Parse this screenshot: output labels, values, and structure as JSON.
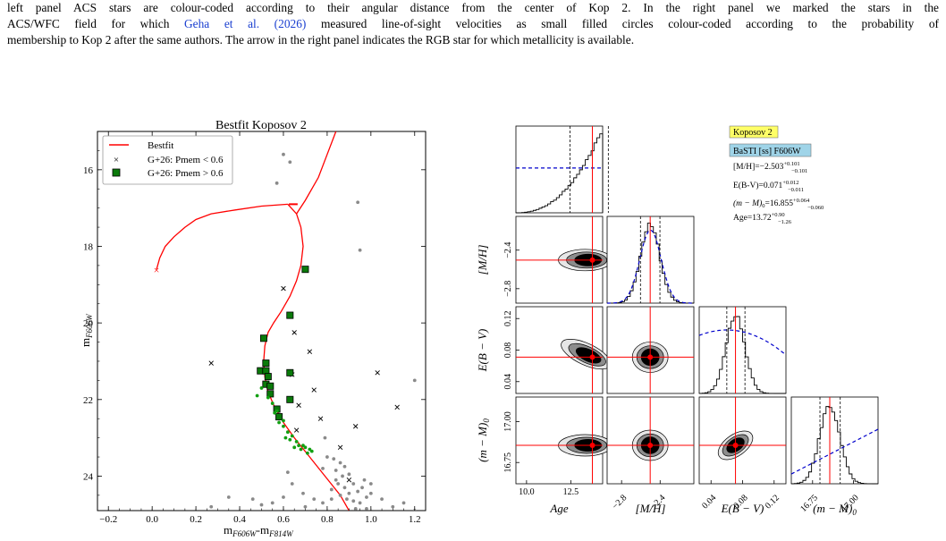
{
  "caption": {
    "line1": "left panel ACS stars are colour-coded according to their angular distance from the center of Kop 2. In the right panel we marked the stars in the",
    "line2_pre": "ACS/WFC field for which ",
    "line2_link_author": "Geha et al.",
    "line2_link_year": "2026",
    "line2_post": " measured line-of-sight velocities as small filled circles colour-coded according to the probability of",
    "line3": "membership to Kop 2 after the same authors. The arrow in the right panel indicates the RGB star for which metallicity is available."
  },
  "cmd_panel": {
    "title": "Bestfit Koposov 2",
    "xlabel_main": "m",
    "xlabel_sub1": "F606W",
    "xlabel_dash": "-m",
    "xlabel_sub2": "F814W",
    "ylabel_main": "m",
    "ylabel_sub": "F606W",
    "legend": [
      "Bestfit",
      "G+26: Pmem < 0.6",
      "G+26: Pmem > 0.6"
    ]
  },
  "corner_panel": {
    "legend_boxes": [
      "Koposov 2",
      "BaSTI [ss] F606W"
    ],
    "results": {
      "mh": {
        "label": "[M/H]=",
        "value": "−2.503",
        "sup": "+0.101",
        "sub": "−0.101"
      },
      "ebv": {
        "label": "E(B-V)=",
        "value": "0.071",
        "sup": "+0.012",
        "sub": "−0.011"
      },
      "dm": {
        "label": "(m − M)",
        "label_sub": "0",
        "eq": "=",
        "value": "16.855",
        "sup": "+0.064",
        "sub": "−0.060"
      },
      "age": {
        "label": "Age=",
        "value": "13.72",
        "sup": "+0.90",
        "sub": "−1.26"
      }
    },
    "param_labels": {
      "age": "Age",
      "mh": "[M/H]",
      "ebv": "E(B − V)",
      "dm": "(m − M)",
      "dm_sub": "0"
    },
    "colors": {
      "fit_line": "#ff0000",
      "hist": "#000000",
      "prior": "#0000cc",
      "legend_yellow": "#ffff66",
      "legend_blue": "#9fd4e8"
    }
  },
  "chart_data": [
    {
      "type": "scatter",
      "title": "Bestfit Koposov 2",
      "xlabel": "mF606W-mF814W",
      "ylabel": "mF606W",
      "xlim": [
        -0.25,
        1.25
      ],
      "ylim": [
        24.9,
        15.0
      ],
      "y_inverted": true,
      "x_ticks": [
        "−0.2",
        "0.0",
        "0.2",
        "0.4",
        "0.6",
        "0.8",
        "1.0",
        "1.2"
      ],
      "x_tick_values": [
        -0.2,
        0.0,
        0.2,
        0.4,
        0.6,
        0.8,
        1.0,
        1.2
      ],
      "y_ticks": [
        "16",
        "18",
        "20",
        "22",
        "24"
      ],
      "y_tick_values": [
        16,
        18,
        20,
        22,
        24
      ],
      "legend_placement": "top-left",
      "series": [
        {
          "name": "Bestfit",
          "kind": "line",
          "color": "#ff0000",
          "points": [
            [
              0.91,
              25.0
            ],
            [
              0.86,
              24.5
            ],
            [
              0.79,
              24.0
            ],
            [
              0.72,
              23.5
            ],
            [
              0.65,
              23.0
            ],
            [
              0.6,
              22.6
            ],
            [
              0.56,
              22.2
            ],
            [
              0.53,
              21.8
            ],
            [
              0.515,
              21.4
            ],
            [
              0.51,
              21.0
            ],
            [
              0.515,
              20.6
            ],
            [
              0.53,
              20.25
            ],
            [
              0.555,
              20.0
            ],
            [
              0.59,
              19.7
            ],
            [
              0.63,
              19.3
            ],
            [
              0.66,
              18.9
            ],
            [
              0.68,
              18.5
            ],
            [
              0.69,
              18.0
            ],
            [
              0.68,
              17.5
            ],
            [
              0.66,
              17.15
            ],
            [
              0.62,
              16.9
            ]
          ],
          "branch2": [
            [
              0.62,
              16.9
            ],
            [
              0.5,
              16.95
            ],
            [
              0.38,
              17.05
            ],
            [
              0.27,
              17.15
            ],
            [
              0.2,
              17.3
            ],
            [
              0.15,
              17.5
            ],
            [
              0.1,
              17.75
            ],
            [
              0.06,
              18.0
            ],
            [
              0.035,
              18.3
            ],
            [
              0.02,
              18.6
            ]
          ],
          "branch3": [
            [
              0.66,
              17.15
            ],
            [
              0.7,
              16.8
            ],
            [
              0.76,
              16.2
            ],
            [
              0.8,
              15.6
            ],
            [
              0.84,
              15.0
            ]
          ],
          "end_marker": [
            0.02,
            18.62
          ]
        },
        {
          "name": "G+26: Pmem < 0.6",
          "kind": "scatter",
          "marker": "x",
          "points": [
            [
              0.6,
              19.1
            ],
            [
              0.27,
              21.05
            ],
            [
              0.65,
              20.25
            ],
            [
              0.72,
              20.75
            ],
            [
              1.03,
              21.3
            ],
            [
              0.64,
              21.35
            ],
            [
              0.74,
              21.75
            ],
            [
              1.12,
              22.2
            ],
            [
              0.67,
              22.15
            ],
            [
              0.77,
              22.5
            ],
            [
              0.93,
              22.7
            ],
            [
              0.66,
              22.8
            ],
            [
              0.86,
              23.25
            ],
            [
              0.9,
              24.1
            ]
          ]
        },
        {
          "name": "G+26: Pmem > 0.6",
          "kind": "scatter",
          "marker": "square",
          "color": "#0a7a0a",
          "points": [
            [
              0.7,
              18.6
            ],
            [
              0.63,
              19.8
            ],
            [
              0.51,
              20.4
            ],
            [
              0.52,
              21.05
            ],
            [
              0.495,
              21.25
            ],
            [
              0.52,
              21.25
            ],
            [
              0.53,
              21.4
            ],
            [
              0.52,
              21.6
            ],
            [
              0.54,
              21.65
            ],
            [
              0.54,
              21.85
            ],
            [
              0.63,
              21.3
            ],
            [
              0.63,
              22.0
            ],
            [
              0.57,
              22.25
            ],
            [
              0.58,
              22.45
            ]
          ]
        },
        {
          "name": "green small",
          "kind": "scatter",
          "marker": "dot",
          "color": "#12a012",
          "points": [
            [
              0.48,
              21.9
            ],
            [
              0.5,
              21.7
            ],
            [
              0.53,
              21.95
            ],
            [
              0.55,
              22.1
            ],
            [
              0.56,
              22.35
            ],
            [
              0.58,
              22.6
            ],
            [
              0.6,
              22.7
            ],
            [
              0.62,
              22.85
            ],
            [
              0.61,
              23.0
            ],
            [
              0.63,
              23.05
            ],
            [
              0.66,
              23.1
            ],
            [
              0.67,
              23.2
            ],
            [
              0.69,
              23.2
            ],
            [
              0.7,
              23.25
            ],
            [
              0.72,
              23.3
            ],
            [
              0.73,
              23.35
            ],
            [
              0.68,
              23.3
            ],
            [
              0.65,
              23.25
            ],
            [
              0.64,
              22.95
            ],
            [
              0.6,
              22.55
            ],
            [
              0.57,
              22.3
            ],
            [
              0.71,
              23.4
            ]
          ]
        },
        {
          "name": "grey field",
          "kind": "scatter",
          "marker": "dot",
          "color": "#8a8a8a",
          "points": [
            [
              0.6,
              15.6
            ],
            [
              0.63,
              15.8
            ],
            [
              0.57,
              16.35
            ],
            [
              0.94,
              16.85
            ],
            [
              0.95,
              18.1
            ],
            [
              1.2,
              21.5
            ],
            [
              0.79,
              23.0
            ],
            [
              0.8,
              23.5
            ],
            [
              0.78,
              23.8
            ],
            [
              0.83,
              23.55
            ],
            [
              0.84,
              23.85
            ],
            [
              0.86,
              23.65
            ],
            [
              0.87,
              24.0
            ],
            [
              0.88,
              23.75
            ],
            [
              0.9,
              23.95
            ],
            [
              0.85,
              24.2
            ],
            [
              0.88,
              24.3
            ],
            [
              0.9,
              24.45
            ],
            [
              0.92,
              24.2
            ],
            [
              0.94,
              24.4
            ],
            [
              0.96,
              24.3
            ],
            [
              0.98,
              24.55
            ],
            [
              1.0,
              24.45
            ],
            [
              0.95,
              24.7
            ],
            [
              0.92,
              24.65
            ],
            [
              0.89,
              24.6
            ],
            [
              0.86,
              24.5
            ],
            [
              0.82,
              24.6
            ],
            [
              0.78,
              24.7
            ],
            [
              0.74,
              24.6
            ],
            [
              0.69,
              24.45
            ],
            [
              0.64,
              24.2
            ],
            [
              0.62,
              23.9
            ],
            [
              0.6,
              24.55
            ],
            [
              0.55,
              24.7
            ],
            [
              0.5,
              24.75
            ],
            [
              0.46,
              24.6
            ],
            [
              0.35,
              24.55
            ],
            [
              0.27,
              24.8
            ],
            [
              0.7,
              24.8
            ],
            [
              1.05,
              24.6
            ],
            [
              1.1,
              24.8
            ],
            [
              1.15,
              24.7
            ],
            [
              1.2,
              24.9
            ],
            [
              0.98,
              24.85
            ],
            [
              0.93,
              24.85
            ],
            [
              0.97,
              24.1
            ],
            [
              1.0,
              24.2
            ],
            [
              0.82,
              24.35
            ],
            [
              0.84,
              24.1
            ]
          ]
        }
      ]
    },
    {
      "type": "corner",
      "parameters": [
        "Age",
        "[M/H]",
        "E(B − V)",
        "(m − M)0"
      ],
      "best": [
        13.72,
        -2.503,
        0.071,
        16.855
      ],
      "ranges": [
        [
          9.4,
          14.3
        ],
        [
          -2.95,
          -2.05
        ],
        [
          0.025,
          0.135
        ],
        [
          16.62,
          17.15
        ]
      ],
      "ticks": {
        "Age": [
          10.0,
          12.5
        ],
        "[M/H]": [
          -2.8,
          -2.4
        ],
        "E(B − V)": [
          0.04,
          0.08,
          0.12
        ],
        "(m − M)0": [
          16.75,
          17.0
        ]
      },
      "tick_labels": {
        "Age": [
          "10.0",
          "12.5"
        ],
        "[M/H]": [
          "−2.8",
          "−2.4"
        ],
        "E(B − V)": [
          "0.04",
          "0.08",
          "0.12"
        ],
        "(m − M)0": [
          "16.75",
          "17.00"
        ]
      },
      "quantiles": {
        "Age": [
          12.46,
          14.62
        ],
        "[M/H]": [
          -2.604,
          -2.402
        ],
        "E(B − V)": [
          0.06,
          0.083
        ],
        "(m − M)0": [
          16.795,
          16.919
        ]
      }
    }
  ]
}
